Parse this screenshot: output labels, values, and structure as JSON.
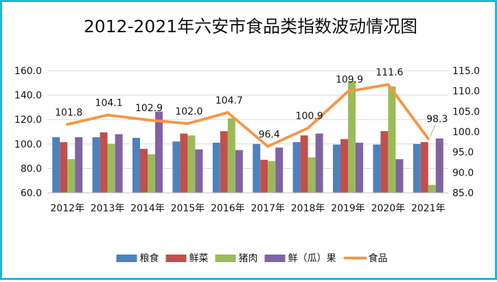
{
  "chart_data": {
    "type": "bar",
    "title": "2012-2021年六安市食品类指数波动情况图",
    "categories": [
      "2012年",
      "2013年",
      "2014年",
      "2015年",
      "2016年",
      "2017年",
      "2018年",
      "2019年",
      "2020年",
      "2021年"
    ],
    "y_left": {
      "min": 60,
      "max": 160,
      "ticks": [
        "60.0",
        "80.0",
        "100.0",
        "120.0",
        "140.0",
        "160.0"
      ]
    },
    "y_right": {
      "min": 85,
      "max": 115,
      "ticks": [
        "85.0",
        "90.0",
        "95.0",
        "100.0",
        "105.0",
        "110.0",
        "115.0"
      ]
    },
    "grid": true,
    "legend_position": "bottom",
    "series": [
      {
        "name": "粮食",
        "type": "bar",
        "axis": "left",
        "color": "#4f81bd",
        "values": [
          105.5,
          105.5,
          105.0,
          102.0,
          101.0,
          100.0,
          101.5,
          99.5,
          99.5,
          100.0
        ]
      },
      {
        "name": "鲜菜",
        "type": "bar",
        "axis": "left",
        "color": "#c0504d",
        "values": [
          101.5,
          109.5,
          96.0,
          108.5,
          110.5,
          87.0,
          107.0,
          104.0,
          110.5,
          101.5
        ]
      },
      {
        "name": "猪肉",
        "type": "bar",
        "axis": "left",
        "color": "#9bbb59",
        "values": [
          87.5,
          100.0,
          91.5,
          107.0,
          121.0,
          86.0,
          89.0,
          151.5,
          147.0,
          66.5
        ]
      },
      {
        "name": "鲜（瓜）果",
        "type": "bar",
        "axis": "left",
        "color": "#8064a2",
        "values": [
          105.5,
          108.0,
          126.5,
          95.5,
          95.0,
          97.0,
          108.5,
          101.0,
          87.5,
          104.5
        ]
      },
      {
        "name": "食品",
        "type": "line",
        "axis": "right",
        "color": "#f79646",
        "values": [
          101.8,
          104.1,
          102.9,
          102.0,
          104.7,
          96.4,
          100.9,
          109.9,
          111.6,
          98.3
        ],
        "labels": [
          "101.8",
          "104.1",
          "102.9",
          "102.0",
          "104.7",
          "96.4",
          "100.9",
          "109.9",
          "111.6",
          "98.3"
        ]
      }
    ]
  }
}
